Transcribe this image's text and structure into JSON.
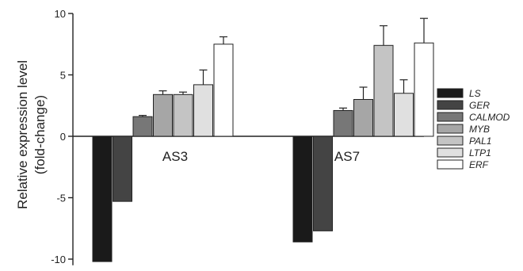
{
  "chart_data": {
    "type": "bar",
    "title": "",
    "xlabel": "",
    "ylabel": "Relative expression level",
    "ylabel_line2": "(fold-change)",
    "ylim": [
      -10.5,
      10
    ],
    "yticks": [
      -10,
      -5,
      0,
      5,
      10
    ],
    "ytick_labels": [
      "-10",
      "-5",
      "0",
      "5",
      "10"
    ],
    "categories": [
      "AS3",
      "AS7"
    ],
    "legend_position": "right",
    "grid": false,
    "series": [
      {
        "name": "LS",
        "color": "#1a1a1a",
        "values": [
          -10.2,
          -8.6
        ],
        "errors": [
          0,
          0
        ]
      },
      {
        "name": "GER",
        "color": "#444444",
        "values": [
          -5.3,
          -7.7
        ],
        "errors": [
          0,
          0
        ]
      },
      {
        "name": "CALMOD",
        "color": "#777777",
        "values": [
          1.6,
          2.1
        ],
        "errors": [
          0.1,
          0.2
        ]
      },
      {
        "name": "MYB",
        "color": "#a6a6a6",
        "values": [
          3.4,
          3.0
        ],
        "errors": [
          0.3,
          1.0
        ]
      },
      {
        "name": "PAL1",
        "color": "#c4c4c4",
        "values": [
          3.4,
          7.4
        ],
        "errors": [
          0.2,
          1.6
        ]
      },
      {
        "name": "LTP1",
        "color": "#e0e0e0",
        "values": [
          4.2,
          3.5
        ],
        "errors": [
          1.2,
          1.1
        ]
      },
      {
        "name": "ERF",
        "color": "#ffffff",
        "values": [
          7.5,
          7.6
        ],
        "errors": [
          0.6,
          2.0
        ]
      }
    ]
  }
}
